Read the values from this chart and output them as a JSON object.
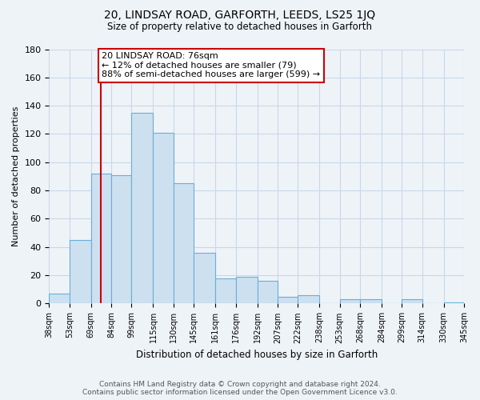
{
  "title": "20, LINDSAY ROAD, GARFORTH, LEEDS, LS25 1JQ",
  "subtitle": "Size of property relative to detached houses in Garforth",
  "xlabel": "Distribution of detached houses by size in Garforth",
  "ylabel": "Number of detached properties",
  "bin_labels": [
    "38sqm",
    "53sqm",
    "69sqm",
    "84sqm",
    "99sqm",
    "115sqm",
    "130sqm",
    "145sqm",
    "161sqm",
    "176sqm",
    "192sqm",
    "207sqm",
    "222sqm",
    "238sqm",
    "253sqm",
    "268sqm",
    "284sqm",
    "299sqm",
    "314sqm",
    "330sqm",
    "345sqm"
  ],
  "bin_edges": [
    38,
    53,
    69,
    84,
    99,
    115,
    130,
    145,
    161,
    176,
    192,
    207,
    222,
    238,
    253,
    268,
    284,
    299,
    314,
    330,
    345
  ],
  "bar_heights": [
    7,
    45,
    92,
    91,
    135,
    121,
    85,
    36,
    18,
    19,
    16,
    5,
    6,
    0,
    3,
    3,
    0,
    3,
    0,
    1
  ],
  "bar_color": "#cde0f0",
  "bar_edge_color": "#6aaed6",
  "vline_x": 76,
  "vline_color": "#cc0000",
  "ylim": [
    0,
    180
  ],
  "annotation_title": "20 LINDSAY ROAD: 76sqm",
  "annotation_line1": "← 12% of detached houses are smaller (79)",
  "annotation_line2": "88% of semi-detached houses are larger (599) →",
  "annotation_box_color": "white",
  "annotation_box_edge": "#cc0000",
  "footer_line1": "Contains HM Land Registry data © Crown copyright and database right 2024.",
  "footer_line2": "Contains public sector information licensed under the Open Government Licence v3.0.",
  "background_color": "#eef3f8",
  "grid_color": "#c8d8e8",
  "yticks": [
    0,
    20,
    40,
    60,
    80,
    100,
    120,
    140,
    160,
    180
  ]
}
